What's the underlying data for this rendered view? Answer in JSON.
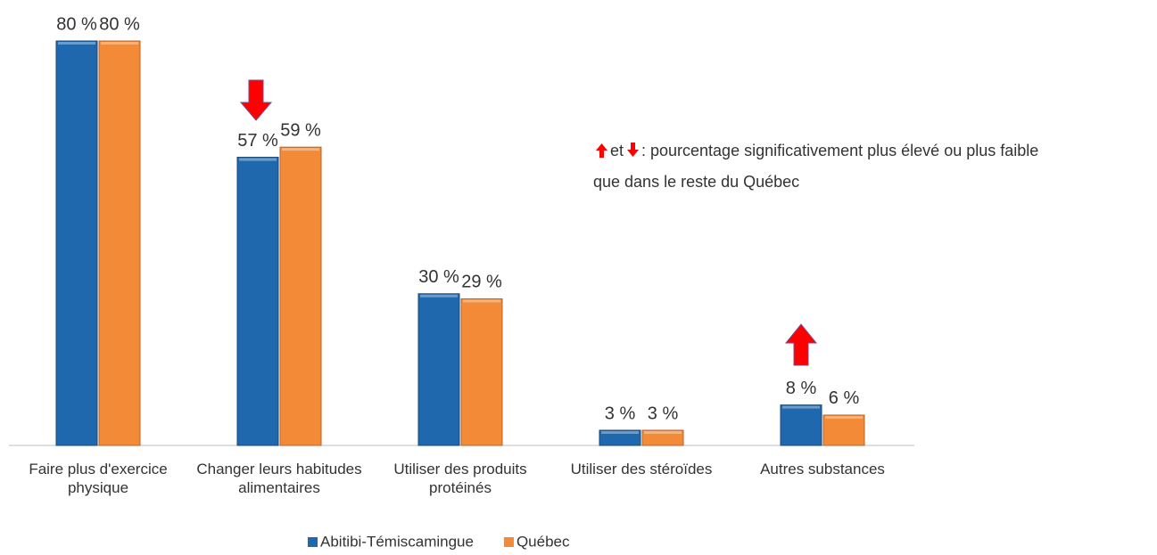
{
  "chart_data": {
    "type": "bar",
    "categories": [
      "Faire plus d'exercice physique",
      "Changer leurs habitudes alimentaires",
      "Utiliser des produits protéinés",
      "Utiliser des stéroïdes",
      "Autres substances"
    ],
    "series": [
      {
        "name": "Abitibi-Témiscamingue",
        "color": "#1f68ad",
        "values": [
          80,
          57,
          30,
          3,
          8
        ],
        "value_labels": [
          "80 %",
          "57 %",
          "30 %",
          "3 %",
          "8 %"
        ]
      },
      {
        "name": "Québec",
        "color": "#f28a38",
        "values": [
          80,
          59,
          29,
          3,
          6
        ],
        "value_labels": [
          "80 %",
          "59 %",
          "29 %",
          "3 %",
          "6 %"
        ]
      }
    ],
    "ylim": [
      0,
      80
    ],
    "note": {
      "and": "et",
      "line1": ": pourcentage significativement plus élevé ou plus faible",
      "line2": "que dans le reste du Québec"
    }
  }
}
